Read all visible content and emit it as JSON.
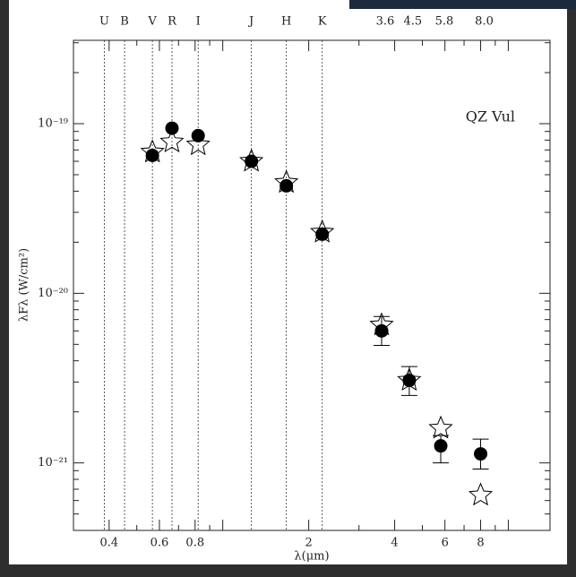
{
  "chart_data": {
    "type": "scatter",
    "annotation": "QZ Vul",
    "x_label": "λ(μm)",
    "y_label": "λFλ (W/cm²)",
    "log_x": true,
    "log_y": true,
    "xlim": [
      0.3,
      14
    ],
    "ylim": [
      4e-22,
      3.1e-19
    ],
    "xticks": [
      0.4,
      0.6,
      0.8,
      2,
      4,
      6,
      8
    ],
    "xminorticks": [
      0.3,
      0.5,
      0.7,
      0.9,
      1,
      3,
      5,
      7,
      9,
      10
    ],
    "yticks": [
      {
        "value": 1e-19,
        "label": "10⁻¹⁹"
      },
      {
        "value": 1e-20,
        "label": "10⁻²⁰"
      },
      {
        "value": 1e-21,
        "label": "10⁻²¹"
      }
    ],
    "yminorticks": [
      5e-22,
      6e-22,
      7e-22,
      8e-22,
      9e-22,
      2e-21,
      3e-21,
      4e-21,
      5e-21,
      6e-21,
      7e-21,
      8e-21,
      9e-21,
      2e-20,
      3e-20,
      4e-20,
      5e-20,
      6e-20,
      7e-20,
      8e-20,
      9e-20,
      2e-19,
      3e-19
    ],
    "filter_lines": [
      {
        "label": "U",
        "x": 0.385
      },
      {
        "label": "B",
        "x": 0.453
      },
      {
        "label": "V",
        "x": 0.567
      },
      {
        "label": "R",
        "x": 0.664
      },
      {
        "label": "I",
        "x": 0.82
      },
      {
        "label": "J",
        "x": 1.26
      },
      {
        "label": "H",
        "x": 1.67
      },
      {
        "label": "K",
        "x": 2.23
      }
    ],
    "filter_labels": [
      {
        "label": "3.6",
        "x": 3.6
      },
      {
        "label": "4.5",
        "x": 4.5
      },
      {
        "label": "5.8",
        "x": 5.8
      },
      {
        "label": "8.0",
        "x": 8.0
      }
    ],
    "series": [
      {
        "marker": "circle",
        "color": "#000000",
        "x": [
          0.567,
          0.664,
          0.82,
          1.26,
          1.67,
          2.23,
          3.6,
          4.5,
          5.8,
          8.0
        ],
        "values": [
          6.5e-20,
          9.4e-20,
          8.5e-20,
          6e-20,
          4.3e-20,
          2.23e-20,
          6e-21,
          3.07e-21,
          1.26e-21,
          1.13e-21
        ],
        "yerr_low": [
          null,
          null,
          null,
          null,
          null,
          null,
          4.93e-21,
          2.5e-21,
          1e-21,
          9.2e-22
        ],
        "yerr_high": [
          null,
          null,
          null,
          null,
          null,
          null,
          7.3e-21,
          3.7e-21,
          1.45e-21,
          1.38e-21
        ]
      },
      {
        "marker": "star",
        "color": "#000000",
        "x": [
          0.567,
          0.664,
          0.82,
          1.26,
          1.67,
          2.23,
          3.6,
          4.5,
          5.8,
          8.0
        ],
        "values": [
          6.8e-20,
          7.8e-20,
          7.5e-20,
          6e-20,
          4.5e-20,
          2.29e-20,
          6.5e-21,
          3.07e-21,
          1.6e-21,
          6.45e-22
        ]
      }
    ]
  }
}
